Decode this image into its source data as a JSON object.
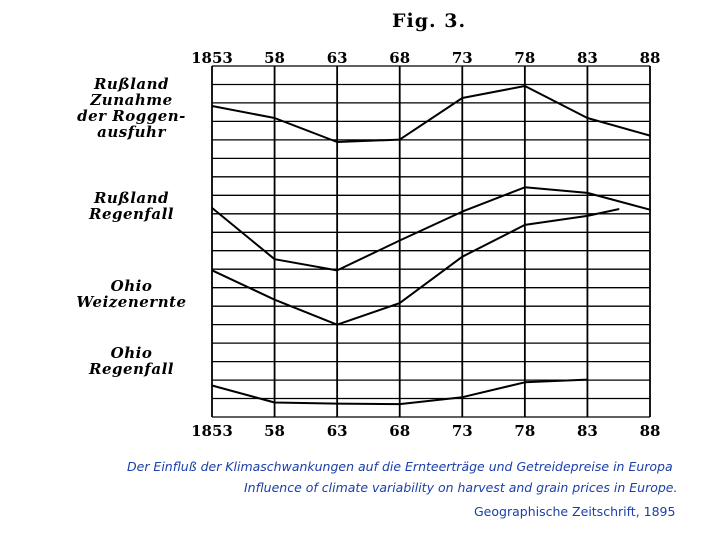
{
  "chart_data": {
    "type": "line",
    "title": "Fig. 3.",
    "x_ticks_top": [
      "1853",
      "58",
      "63",
      "68",
      "73",
      "78",
      "83",
      "88"
    ],
    "x_ticks_bottom": [
      "1853",
      "58",
      "63",
      "68",
      "73",
      "78",
      "83",
      "88"
    ],
    "x_tick_years": [
      1853,
      1858,
      1863,
      1868,
      1873,
      1878,
      1883,
      1888
    ],
    "grid": true,
    "series": [
      {
        "name_lines": [
          "Rußland",
          "Zunahme",
          "der Roggen-",
          "ausfuhr"
        ],
        "x": [
          1853,
          1858,
          1863,
          1868,
          1873,
          1878,
          1883,
          1888
        ],
        "y": [
          10.0,
          8.5,
          5.5,
          5.8,
          11.0,
          12.5,
          8.5,
          6.3
        ]
      },
      {
        "name_lines": [
          "Rußland",
          "Regenfall"
        ],
        "x": [
          1853,
          1858,
          1863,
          1868,
          1873,
          1878,
          1883,
          1888
        ],
        "y": [
          8.8,
          3.3,
          2.1,
          5.3,
          8.4,
          11.0,
          10.4,
          8.6
        ]
      },
      {
        "name_lines": [
          "Ohio",
          "Weizenernte"
        ],
        "x": [
          1853,
          1858,
          1863,
          1868,
          1873,
          1878,
          1883,
          1885.5
        ],
        "y": [
          8.8,
          6.2,
          4.0,
          5.9,
          10.0,
          12.8,
          13.6,
          14.2
        ]
      },
      {
        "name_lines": [
          "Ohio",
          "Regenfall"
        ],
        "x": [
          1853,
          1858,
          1863,
          1868,
          1873,
          1878,
          1883
        ],
        "y": [
          4.6,
          1.4,
          1.2,
          1.1,
          2.4,
          5.2,
          5.7
        ]
      }
    ]
  },
  "captions": {
    "german": "Der Einfluß der Klimaschwankungen auf die Ernteerträge und Getreidepreise in Europa",
    "english": "Influence of climate variability on harvest and grain prices in Europe.",
    "source": "Geographische Zeitschrift, 1895"
  }
}
